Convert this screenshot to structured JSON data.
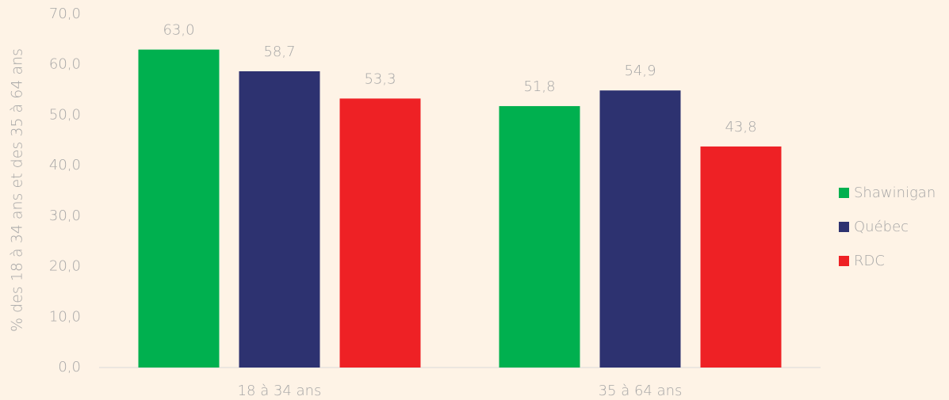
{
  "chart_data": {
    "type": "bar",
    "y_label": "% des 18 à 34 ans et des 35 à 64 ans",
    "categories": [
      "18 à 34 ans",
      "35 à 64 ans"
    ],
    "series": [
      {
        "name": "Shawinigan",
        "color": "#00b04f",
        "values": [
          63.0,
          51.8
        ],
        "value_labels": [
          "63,0",
          "51,8"
        ]
      },
      {
        "name": "Québec",
        "color": "#2d3270",
        "values": [
          58.7,
          54.9
        ],
        "value_labels": [
          "58,7",
          "54,9"
        ]
      },
      {
        "name": "RDC",
        "color": "#ee2125",
        "values": [
          53.3,
          43.8
        ],
        "value_labels": [
          "53,3",
          "43,8"
        ]
      }
    ],
    "ylim": [
      0,
      70
    ],
    "yticks": [
      {
        "value": 0,
        "label": "0,0"
      },
      {
        "value": 10,
        "label": "10,0"
      },
      {
        "value": 20,
        "label": "20,0"
      },
      {
        "value": 30,
        "label": "30,0"
      },
      {
        "value": 40,
        "label": "40,0"
      },
      {
        "value": 50,
        "label": "50,0"
      },
      {
        "value": 60,
        "label": "60,0"
      },
      {
        "value": 70,
        "label": "70,0"
      }
    ],
    "grid": false,
    "legend": "right"
  }
}
